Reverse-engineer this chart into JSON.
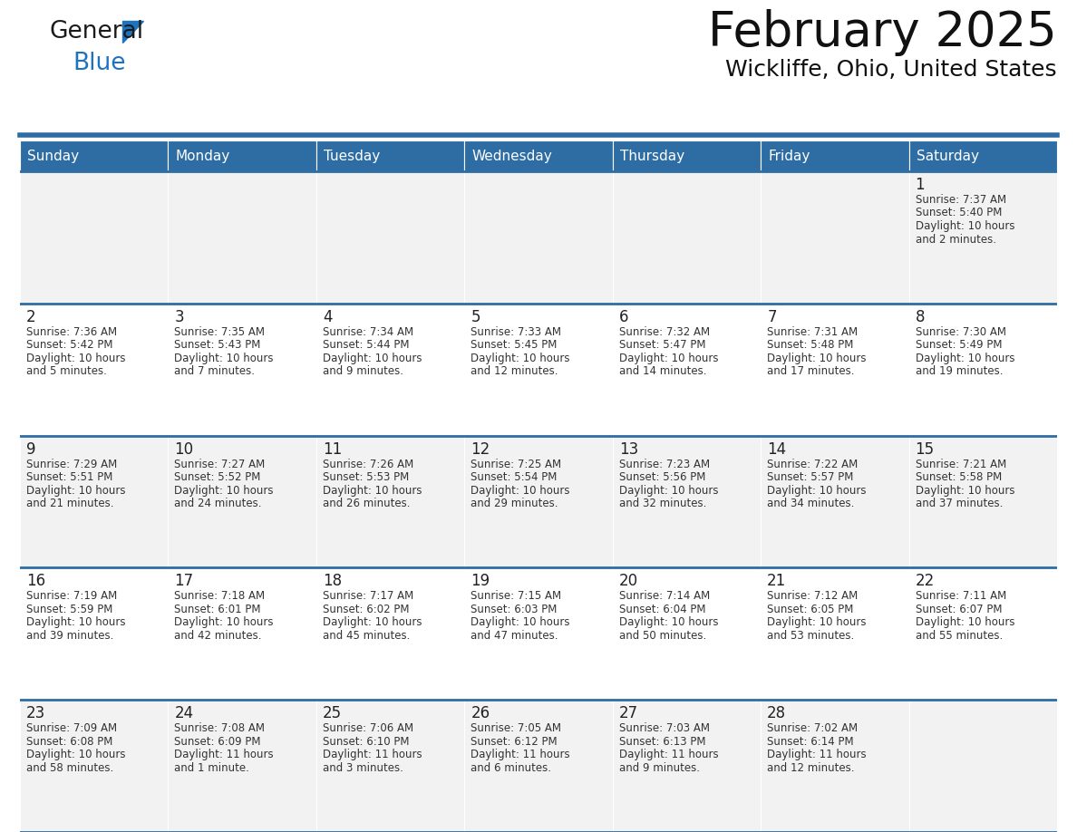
{
  "title": "February 2025",
  "subtitle": "Wickliffe, Ohio, United States",
  "header_color": "#2E6DA4",
  "header_text_color": "#FFFFFF",
  "cell_bg_even": "#F2F2F2",
  "cell_bg_odd": "#FFFFFF",
  "border_color": "#2E6DA4",
  "text_color": "#333333",
  "days_of_week": [
    "Sunday",
    "Monday",
    "Tuesday",
    "Wednesday",
    "Thursday",
    "Friday",
    "Saturday"
  ],
  "weeks": [
    [
      {
        "day": "",
        "info": ""
      },
      {
        "day": "",
        "info": ""
      },
      {
        "day": "",
        "info": ""
      },
      {
        "day": "",
        "info": ""
      },
      {
        "day": "",
        "info": ""
      },
      {
        "day": "",
        "info": ""
      },
      {
        "day": "1",
        "info": "Sunrise: 7:37 AM\nSunset: 5:40 PM\nDaylight: 10 hours\nand 2 minutes."
      }
    ],
    [
      {
        "day": "2",
        "info": "Sunrise: 7:36 AM\nSunset: 5:42 PM\nDaylight: 10 hours\nand 5 minutes."
      },
      {
        "day": "3",
        "info": "Sunrise: 7:35 AM\nSunset: 5:43 PM\nDaylight: 10 hours\nand 7 minutes."
      },
      {
        "day": "4",
        "info": "Sunrise: 7:34 AM\nSunset: 5:44 PM\nDaylight: 10 hours\nand 9 minutes."
      },
      {
        "day": "5",
        "info": "Sunrise: 7:33 AM\nSunset: 5:45 PM\nDaylight: 10 hours\nand 12 minutes."
      },
      {
        "day": "6",
        "info": "Sunrise: 7:32 AM\nSunset: 5:47 PM\nDaylight: 10 hours\nand 14 minutes."
      },
      {
        "day": "7",
        "info": "Sunrise: 7:31 AM\nSunset: 5:48 PM\nDaylight: 10 hours\nand 17 minutes."
      },
      {
        "day": "8",
        "info": "Sunrise: 7:30 AM\nSunset: 5:49 PM\nDaylight: 10 hours\nand 19 minutes."
      }
    ],
    [
      {
        "day": "9",
        "info": "Sunrise: 7:29 AM\nSunset: 5:51 PM\nDaylight: 10 hours\nand 21 minutes."
      },
      {
        "day": "10",
        "info": "Sunrise: 7:27 AM\nSunset: 5:52 PM\nDaylight: 10 hours\nand 24 minutes."
      },
      {
        "day": "11",
        "info": "Sunrise: 7:26 AM\nSunset: 5:53 PM\nDaylight: 10 hours\nand 26 minutes."
      },
      {
        "day": "12",
        "info": "Sunrise: 7:25 AM\nSunset: 5:54 PM\nDaylight: 10 hours\nand 29 minutes."
      },
      {
        "day": "13",
        "info": "Sunrise: 7:23 AM\nSunset: 5:56 PM\nDaylight: 10 hours\nand 32 minutes."
      },
      {
        "day": "14",
        "info": "Sunrise: 7:22 AM\nSunset: 5:57 PM\nDaylight: 10 hours\nand 34 minutes."
      },
      {
        "day": "15",
        "info": "Sunrise: 7:21 AM\nSunset: 5:58 PM\nDaylight: 10 hours\nand 37 minutes."
      }
    ],
    [
      {
        "day": "16",
        "info": "Sunrise: 7:19 AM\nSunset: 5:59 PM\nDaylight: 10 hours\nand 39 minutes."
      },
      {
        "day": "17",
        "info": "Sunrise: 7:18 AM\nSunset: 6:01 PM\nDaylight: 10 hours\nand 42 minutes."
      },
      {
        "day": "18",
        "info": "Sunrise: 7:17 AM\nSunset: 6:02 PM\nDaylight: 10 hours\nand 45 minutes."
      },
      {
        "day": "19",
        "info": "Sunrise: 7:15 AM\nSunset: 6:03 PM\nDaylight: 10 hours\nand 47 minutes."
      },
      {
        "day": "20",
        "info": "Sunrise: 7:14 AM\nSunset: 6:04 PM\nDaylight: 10 hours\nand 50 minutes."
      },
      {
        "day": "21",
        "info": "Sunrise: 7:12 AM\nSunset: 6:05 PM\nDaylight: 10 hours\nand 53 minutes."
      },
      {
        "day": "22",
        "info": "Sunrise: 7:11 AM\nSunset: 6:07 PM\nDaylight: 10 hours\nand 55 minutes."
      }
    ],
    [
      {
        "day": "23",
        "info": "Sunrise: 7:09 AM\nSunset: 6:08 PM\nDaylight: 10 hours\nand 58 minutes."
      },
      {
        "day": "24",
        "info": "Sunrise: 7:08 AM\nSunset: 6:09 PM\nDaylight: 11 hours\nand 1 minute."
      },
      {
        "day": "25",
        "info": "Sunrise: 7:06 AM\nSunset: 6:10 PM\nDaylight: 11 hours\nand 3 minutes."
      },
      {
        "day": "26",
        "info": "Sunrise: 7:05 AM\nSunset: 6:12 PM\nDaylight: 11 hours\nand 6 minutes."
      },
      {
        "day": "27",
        "info": "Sunrise: 7:03 AM\nSunset: 6:13 PM\nDaylight: 11 hours\nand 9 minutes."
      },
      {
        "day": "28",
        "info": "Sunrise: 7:02 AM\nSunset: 6:14 PM\nDaylight: 11 hours\nand 12 minutes."
      },
      {
        "day": "",
        "info": ""
      }
    ]
  ],
  "logo_color_general": "#1a1a1a",
  "logo_color_blue": "#1E73BE",
  "logo_triangle_color": "#1E73BE",
  "title_fontsize": 38,
  "subtitle_fontsize": 18,
  "header_fontsize": 11,
  "day_num_fontsize": 12,
  "info_fontsize": 8.5
}
